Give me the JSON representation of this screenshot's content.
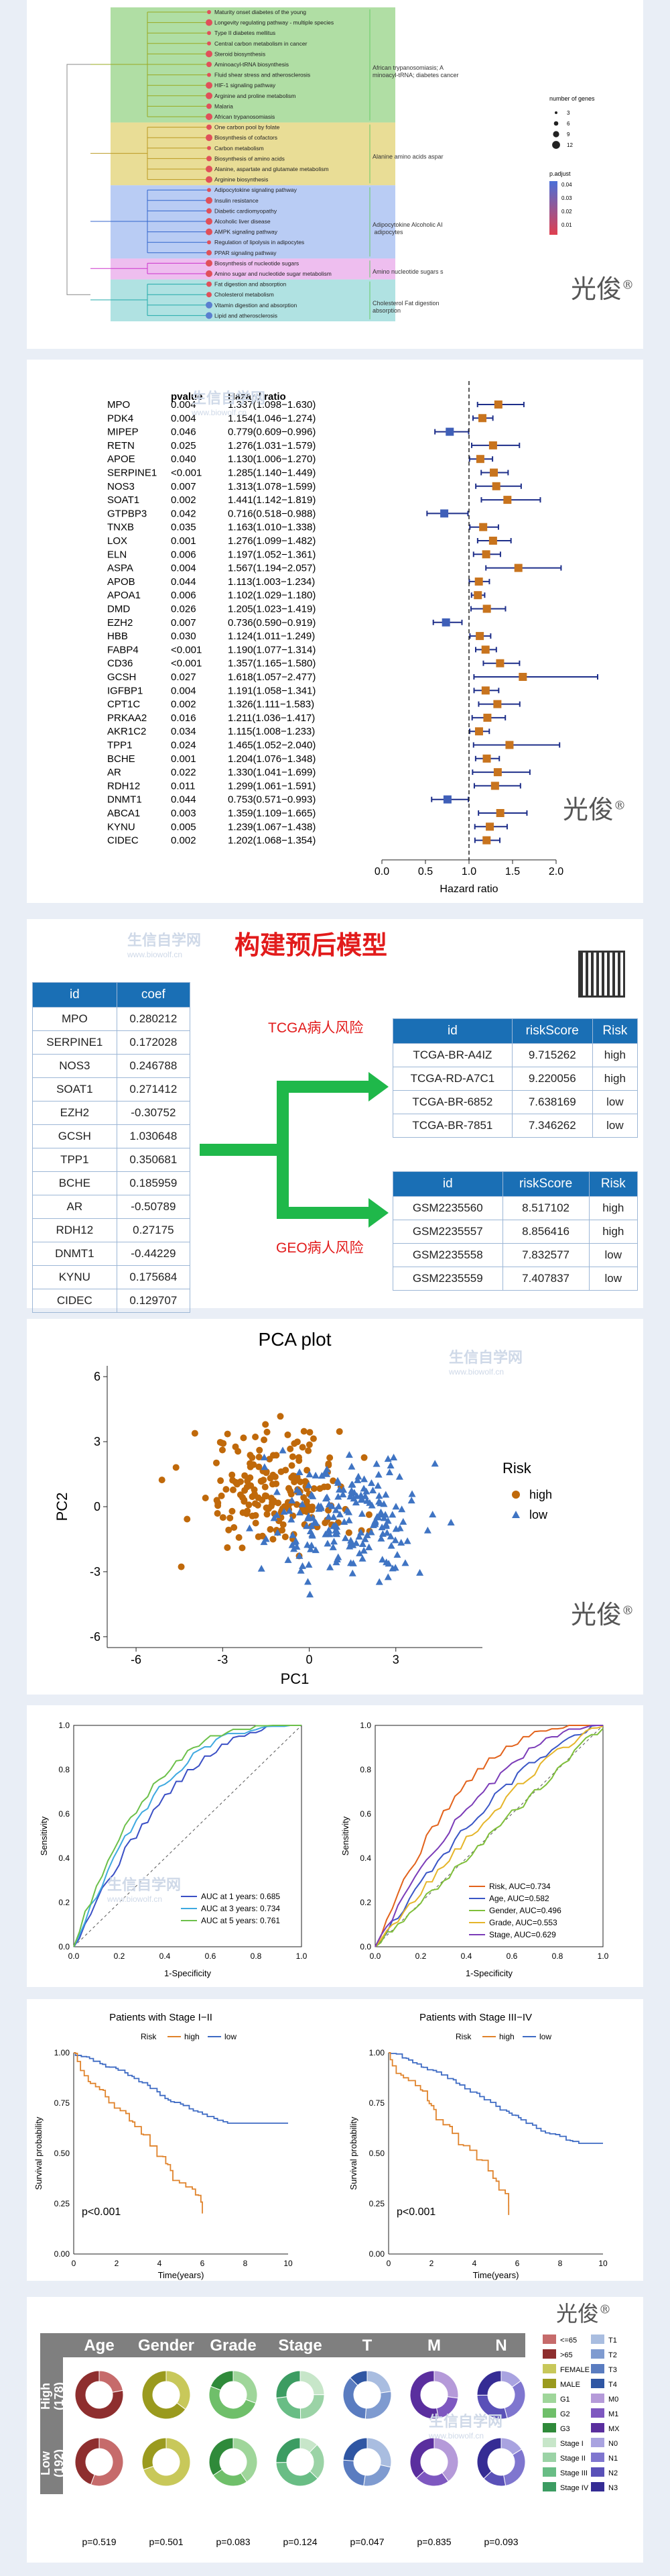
{
  "brand": {
    "text": "光俊",
    "mark": "®"
  },
  "watermark": {
    "cn": "生信自学网",
    "url": "www.biowolf.cn"
  },
  "enrich": {
    "terms": [
      "Maturity onset diabetes of the young",
      "Longevity regulating pathway - multiple species",
      "Type II diabetes mellitus",
      "Central carbon metabolism in cancer",
      "Steroid biosynthesis",
      "Aminoacyl-tRNA biosynthesis",
      "Fluid shear stress and atherosclerosis",
      "HIF-1 signaling pathway",
      "Arginine and proline metabolism",
      "Malaria",
      "African trypanosomiasis",
      "One carbon pool by folate",
      "Biosynthesis of cofactors",
      "Carbon metabolism",
      "Biosynthesis of amino acids",
      "Alanine, aspartate and glutamate metabolism",
      "Arginine biosynthesis",
      "Adipocytokine signaling pathway",
      "Insulin resistance",
      "Diabetic cardiomyopathy",
      "Alcoholic liver disease",
      "AMPK signaling pathway",
      "Regulation of lipolysis in adipocytes",
      "PPAR signaling pathway",
      "Biosynthesis of nucleotide sugars",
      "Amino sugar and nucleotide sugar metabolism",
      "Fat digestion and absorption",
      "Cholesterol metabolism",
      "Vitamin digestion and absorption",
      "Lipid and atherosclerosis"
    ],
    "clusters": [
      "African trypanosomiasis; Aminoacyl-tRNA; diabetes cancer",
      "Alanine amino acids aspar",
      "Adipocytokine Alcoholic AI adipocytes",
      "Amino nucleotide sugars s",
      "Cholesterol Fat digestion absorption"
    ],
    "size_title": "number of genes",
    "size_labels": [
      "3",
      "6",
      "9",
      "12"
    ],
    "color_title": "p.adjust",
    "color_labels": [
      "0.04",
      "0.03",
      "0.02",
      "0.01"
    ]
  },
  "forest": {
    "col_pvalue": "pvalue",
    "col_hr": "Hazard ratio",
    "xlabel": "Hazard ratio",
    "ticks": [
      "0.0",
      "0.5",
      "1.0",
      "1.5",
      "2.0"
    ],
    "rows": [
      {
        "id": "MPO",
        "p": "0.004",
        "hr": "1.337(1.098−1.630)",
        "e": 1.337,
        "l": 1.098,
        "u": 1.63
      },
      {
        "id": "PDK4",
        "p": "0.004",
        "hr": "1.154(1.046−1.274)",
        "e": 1.154,
        "l": 1.046,
        "u": 1.274
      },
      {
        "id": "MIPEP",
        "p": "0.046",
        "hr": "0.779(0.609−0.996)",
        "e": 0.779,
        "l": 0.609,
        "u": 0.996
      },
      {
        "id": "RETN",
        "p": "0.025",
        "hr": "1.276(1.031−1.579)",
        "e": 1.276,
        "l": 1.031,
        "u": 1.579
      },
      {
        "id": "APOE",
        "p": "0.040",
        "hr": "1.130(1.006−1.270)",
        "e": 1.13,
        "l": 1.006,
        "u": 1.27
      },
      {
        "id": "SERPINE1",
        "p": "<0.001",
        "hr": "1.285(1.140−1.449)",
        "e": 1.285,
        "l": 1.14,
        "u": 1.449
      },
      {
        "id": "NOS3",
        "p": "0.007",
        "hr": "1.313(1.078−1.599)",
        "e": 1.313,
        "l": 1.078,
        "u": 1.599
      },
      {
        "id": "SOAT1",
        "p": "0.002",
        "hr": "1.441(1.142−1.819)",
        "e": 1.441,
        "l": 1.142,
        "u": 1.819
      },
      {
        "id": "GTPBP3",
        "p": "0.042",
        "hr": "0.716(0.518−0.988)",
        "e": 0.716,
        "l": 0.518,
        "u": 0.988
      },
      {
        "id": "TNXB",
        "p": "0.035",
        "hr": "1.163(1.010−1.338)",
        "e": 1.163,
        "l": 1.01,
        "u": 1.338
      },
      {
        "id": "LOX",
        "p": "0.001",
        "hr": "1.276(1.099−1.482)",
        "e": 1.276,
        "l": 1.099,
        "u": 1.482
      },
      {
        "id": "ELN",
        "p": "0.006",
        "hr": "1.197(1.052−1.361)",
        "e": 1.197,
        "l": 1.052,
        "u": 1.361
      },
      {
        "id": "ASPA",
        "p": "0.004",
        "hr": "1.567(1.194−2.057)",
        "e": 1.567,
        "l": 1.194,
        "u": 2.057
      },
      {
        "id": "APOB",
        "p": "0.044",
        "hr": "1.113(1.003−1.234)",
        "e": 1.113,
        "l": 1.003,
        "u": 1.234
      },
      {
        "id": "APOA1",
        "p": "0.006",
        "hr": "1.102(1.029−1.180)",
        "e": 1.102,
        "l": 1.029,
        "u": 1.18
      },
      {
        "id": "DMD",
        "p": "0.026",
        "hr": "1.205(1.023−1.419)",
        "e": 1.205,
        "l": 1.023,
        "u": 1.419
      },
      {
        "id": "EZH2",
        "p": "0.007",
        "hr": "0.736(0.590−0.919)",
        "e": 0.736,
        "l": 0.59,
        "u": 0.919
      },
      {
        "id": "HBB",
        "p": "0.030",
        "hr": "1.124(1.011−1.249)",
        "e": 1.124,
        "l": 1.011,
        "u": 1.249
      },
      {
        "id": "FABP4",
        "p": "<0.001",
        "hr": "1.190(1.077−1.314)",
        "e": 1.19,
        "l": 1.077,
        "u": 1.314
      },
      {
        "id": "CD36",
        "p": "<0.001",
        "hr": "1.357(1.165−1.580)",
        "e": 1.357,
        "l": 1.165,
        "u": 1.58
      },
      {
        "id": "GCSH",
        "p": "0.027",
        "hr": "1.618(1.057−2.477)",
        "e": 1.618,
        "l": 1.057,
        "u": 2.477
      },
      {
        "id": "IGFBP1",
        "p": "0.004",
        "hr": "1.191(1.058−1.341)",
        "e": 1.191,
        "l": 1.058,
        "u": 1.341
      },
      {
        "id": "CPT1C",
        "p": "0.002",
        "hr": "1.326(1.111−1.583)",
        "e": 1.326,
        "l": 1.111,
        "u": 1.583
      },
      {
        "id": "PRKAA2",
        "p": "0.016",
        "hr": "1.211(1.036−1.417)",
        "e": 1.211,
        "l": 1.036,
        "u": 1.417
      },
      {
        "id": "AKR1C2",
        "p": "0.034",
        "hr": "1.115(1.008−1.233)",
        "e": 1.115,
        "l": 1.008,
        "u": 1.233
      },
      {
        "id": "TPP1",
        "p": "0.024",
        "hr": "1.465(1.052−2.040)",
        "e": 1.465,
        "l": 1.052,
        "u": 2.04
      },
      {
        "id": "BCHE",
        "p": "0.001",
        "hr": "1.204(1.076−1.348)",
        "e": 1.204,
        "l": 1.076,
        "u": 1.348
      },
      {
        "id": "AR",
        "p": "0.022",
        "hr": "1.330(1.041−1.699)",
        "e": 1.33,
        "l": 1.041,
        "u": 1.699
      },
      {
        "id": "RDH12",
        "p": "0.011",
        "hr": "1.299(1.061−1.591)",
        "e": 1.299,
        "l": 1.061,
        "u": 1.591
      },
      {
        "id": "DNMT1",
        "p": "0.044",
        "hr": "0.753(0.571−0.993)",
        "e": 0.753,
        "l": 0.571,
        "u": 0.993
      },
      {
        "id": "ABCA1",
        "p": "0.003",
        "hr": "1.359(1.109−1.665)",
        "e": 1.359,
        "l": 1.109,
        "u": 1.665
      },
      {
        "id": "KYNU",
        "p": "0.005",
        "hr": "1.239(1.067−1.438)",
        "e": 1.239,
        "l": 1.067,
        "u": 1.438
      },
      {
        "id": "CIDEC",
        "p": "0.002",
        "hr": "1.202(1.068−1.354)",
        "e": 1.202,
        "l": 1.068,
        "u": 1.354
      }
    ]
  },
  "model": {
    "title": "构建预后模型",
    "coef_head": [
      "id",
      "coef"
    ],
    "coef": [
      [
        "MPO",
        "0.280212"
      ],
      [
        "SERPINE1",
        "0.172028"
      ],
      [
        "NOS3",
        "0.246788"
      ],
      [
        "SOAT1",
        "0.271412"
      ],
      [
        "EZH2",
        "-0.30752"
      ],
      [
        "GCSH",
        "1.030648"
      ],
      [
        "TPP1",
        "0.350681"
      ],
      [
        "BCHE",
        "0.185959"
      ],
      [
        "AR",
        "-0.50789"
      ],
      [
        "RDH12",
        "0.27175"
      ],
      [
        "DNMT1",
        "-0.44229"
      ],
      [
        "KYNU",
        "0.175684"
      ],
      [
        "CIDEC",
        "0.129707"
      ]
    ],
    "tcga_label": "TCGA病人风险",
    "geo_label": "GEO病人风险",
    "risk_head": [
      "id",
      "riskScore",
      "Risk"
    ],
    "tcga": [
      [
        "TCGA-BR-A4IZ",
        "9.715262",
        "high"
      ],
      [
        "TCGA-RD-A7C1",
        "9.220056",
        "high"
      ],
      [
        "TCGA-BR-6852",
        "7.638169",
        "low"
      ],
      [
        "TCGA-BR-7851",
        "7.346262",
        "low"
      ]
    ],
    "geo": [
      [
        "GSM2235560",
        "8.517102",
        "high"
      ],
      [
        "GSM2235557",
        "8.856416",
        "high"
      ],
      [
        "GSM2235558",
        "7.832577",
        "low"
      ],
      [
        "GSM2235559",
        "7.407837",
        "low"
      ]
    ]
  },
  "pca": {
    "title": "PCA plot",
    "xlabel": "PC1",
    "ylabel": "PC2",
    "xticks": [
      "-6",
      "-3",
      "0",
      "3"
    ],
    "yticks": [
      "-6",
      "-3",
      "0",
      "3",
      "6"
    ],
    "legend_title": "Risk",
    "legend": [
      "high",
      "low"
    ],
    "colors": {
      "high": "#c0690a",
      "low": "#3f74c3"
    }
  },
  "roc1": {
    "xlabel": "1-Specificity",
    "ylabel": "Sensitivity",
    "ticks": [
      "0.0",
      "0.2",
      "0.4",
      "0.6",
      "0.8",
      "1.0"
    ],
    "legend": [
      "AUC at 1 years: 0.685",
      "AUC at 3 years: 0.734",
      "AUC at 5 years: 0.761"
    ],
    "colors": [
      "#3a4fc5",
      "#3fa9e0",
      "#6cc04a"
    ]
  },
  "roc2": {
    "xlabel": "1-Specificity",
    "ylabel": "Sensitivity",
    "ticks": [
      "0.0",
      "0.2",
      "0.4",
      "0.6",
      "0.8",
      "1.0"
    ],
    "legend": [
      "Risk, AUC=0.734",
      "Age, AUC=0.582",
      "Gender, AUC=0.496",
      "Grade, AUC=0.553",
      "Stage, AUC=0.629"
    ],
    "colors": [
      "#e2621b",
      "#3a56c6",
      "#7fbf3a",
      "#e5b52a",
      "#7b3cb8"
    ]
  },
  "km1": {
    "title": "Patients with Stage I−II",
    "legend_label": "Risk",
    "legend": [
      "high",
      "low"
    ],
    "pval": "p<0.001",
    "xlabel": "Time(years)",
    "ylabel": "Survival probability",
    "xticks": [
      "0",
      "2",
      "4",
      "6",
      "8",
      "10"
    ],
    "yticks": [
      "0.00",
      "0.25",
      "0.50",
      "0.75",
      "1.00"
    ]
  },
  "km2": {
    "title": "Patients with Stage III−IV",
    "legend_label": "Risk",
    "legend": [
      "high",
      "low"
    ],
    "pval": "p<0.001",
    "xlabel": "Time(years)",
    "ylabel": "Survival probability",
    "xticks": [
      "0",
      "2",
      "4",
      "6",
      "8",
      "10"
    ],
    "yticks": [
      "0.00",
      "0.25",
      "0.50",
      "0.75",
      "1.00"
    ]
  },
  "donut": {
    "cols": [
      "Age",
      "Gender",
      "Grade",
      "Stage",
      "T",
      "M",
      "N"
    ],
    "rows": [
      "High\n(178)",
      "Low\n(192)"
    ],
    "pvals": [
      "p=0.519",
      "p=0.501",
      "p=0.083",
      "p=0.124",
      "p=0.047",
      "p=0.835",
      "p=0.093"
    ],
    "legend": [
      [
        "<=65",
        "#c66b6b"
      ],
      [
        ">65",
        "#8e2e2e"
      ],
      [
        "FEMALE",
        "#c8c85a"
      ],
      [
        "MALE",
        "#9a9a1e"
      ],
      [
        "G1",
        "#9fd69a"
      ],
      [
        "G2",
        "#6fbf6a"
      ],
      [
        "G3",
        "#2f8a3a"
      ],
      [
        "Stage I",
        "#c7e6c9"
      ],
      [
        "Stage II",
        "#9bd3a6"
      ],
      [
        "Stage III",
        "#69bd85"
      ],
      [
        "Stage IV",
        "#3c9c62"
      ],
      [
        "T1",
        "#a9bde0"
      ],
      [
        "T2",
        "#7f9bd0"
      ],
      [
        "T3",
        "#5a7cc0"
      ],
      [
        "T4",
        "#2f56a3"
      ],
      [
        "M0",
        "#b59ad9"
      ],
      [
        "M1",
        "#7e58c0"
      ],
      [
        "MX",
        "#5a2e9e"
      ],
      [
        "N0",
        "#a9a3e0"
      ],
      [
        "N1",
        "#7f76cf"
      ],
      [
        "N2",
        "#5a51b8"
      ],
      [
        "N3",
        "#352c94"
      ]
    ]
  }
}
